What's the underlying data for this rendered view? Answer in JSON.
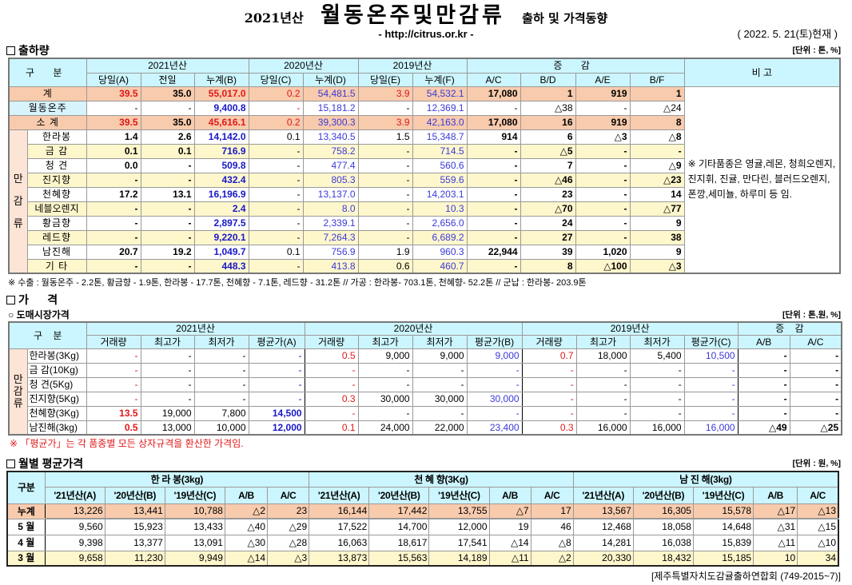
{
  "header": {
    "year": "2021년산",
    "main": "월동온주및만감류",
    "sub": "출하 및 가격동향",
    "url": "- http://citrus.or.kr -",
    "date": "( 2022. 5. 21(토)현재 )"
  },
  "shipment": {
    "title": "출하량",
    "unit": "[단위 : 톤, %]",
    "gubun": "구  분",
    "years": [
      "2021년산",
      "2020년산",
      "2019년산"
    ],
    "diff": "증  감",
    "remark_head": "비 고",
    "cols": [
      "당일(A)",
      "전일",
      "누계(B)",
      "당일(C)",
      "누계(D)",
      "당일(E)",
      "누계(F)",
      "A/C",
      "B/D",
      "A/E",
      "B/F"
    ],
    "group_label": "만\n\n감\n\n류",
    "rows": [
      {
        "label": "계",
        "type": "total",
        "cells": [
          "39.5",
          "35.0",
          "55,017.0",
          "0.2",
          "54,481.5",
          "3.9",
          "54,532.1",
          "17,080",
          "1",
          "919",
          "1"
        ]
      },
      {
        "label": "월동온주",
        "type": "winter",
        "cells": [
          "-",
          "-",
          "9,400.8",
          "-",
          "15,181.2",
          "-",
          "12,369.1",
          "-",
          "△38",
          "-",
          "△24"
        ]
      },
      {
        "label": "소  계",
        "type": "total",
        "cells": [
          "39.5",
          "35.0",
          "45,616.1",
          "0.2",
          "39,300.3",
          "3.9",
          "42,163.0",
          "17,080",
          "16",
          "919",
          "8"
        ]
      },
      {
        "label": "한라봉",
        "type": "item",
        "cells": [
          "1.4",
          "2.6",
          "14,142.0",
          "0.1",
          "13,340.5",
          "1.5",
          "15,348.7",
          "914",
          "6",
          "△3",
          "△8"
        ]
      },
      {
        "label": "금  감",
        "type": "item",
        "cells": [
          "0.1",
          "0.1",
          "716.9",
          "-",
          "758.2",
          "-",
          "714.5",
          "-",
          "△5",
          "-",
          "-"
        ]
      },
      {
        "label": "청  견",
        "type": "item",
        "cells": [
          "0.0",
          "-",
          "509.8",
          "-",
          "477.4",
          "-",
          "560.6",
          "-",
          "7",
          "-",
          "△9"
        ]
      },
      {
        "label": "진지향",
        "type": "item",
        "cells": [
          "-",
          "-",
          "432.4",
          "-",
          "805.3",
          "-",
          "559.6",
          "-",
          "△46",
          "-",
          "△23"
        ]
      },
      {
        "label": "천혜향",
        "type": "item",
        "cells": [
          "17.2",
          "13.1",
          "16,196.9",
          "-",
          "13,137.0",
          "-",
          "14,203.1",
          "-",
          "23",
          "-",
          "14"
        ]
      },
      {
        "label": "네블오렌지",
        "type": "item",
        "cells": [
          "-",
          "-",
          "2.4",
          "-",
          "8.0",
          "-",
          "10.3",
          "-",
          "△70",
          "-",
          "△77"
        ]
      },
      {
        "label": "황금향",
        "type": "item",
        "cells": [
          "-",
          "-",
          "2,897.5",
          "-",
          "2,339.1",
          "-",
          "2,656.0",
          "-",
          "24",
          "-",
          "9"
        ]
      },
      {
        "label": "레드향",
        "type": "item",
        "cells": [
          "-",
          "-",
          "9,220.1",
          "-",
          "7,264.3",
          "-",
          "6,689.2",
          "-",
          "27",
          "-",
          "38"
        ]
      },
      {
        "label": "남진해",
        "type": "item",
        "cells": [
          "20.7",
          "19.2",
          "1,049.7",
          "0.1",
          "756.9",
          "1.9",
          "960.3",
          "22,944",
          "39",
          "1,020",
          "9"
        ]
      },
      {
        "label": "기  타",
        "type": "item",
        "cells": [
          "-",
          "-",
          "448.3",
          "-",
          "413.8",
          "0.6",
          "460.7",
          "-",
          "8",
          "△100",
          "△3"
        ]
      }
    ],
    "remark": "※ 기타품종은 영귤,레몬, 청희오렌지, 진지휘, 진귤, 만다린, 블러드오렌지, 폰깡,세미뇰, 하루미 등 임.",
    "note": "※ 수출 :  월동온주 - 2.2톤, 황금향 - 1.9톤, 한라봉 - 17.7톤,  천혜향 - 7.1톤, 레드향 - 31.2톤 // 가공 : 한라봉- 703.1톤, 천혜향- 52.2톤 // 군납 : 한라봉- 203.9톤"
  },
  "price": {
    "title": "가      격",
    "subtitle": "○ 도매시장가격",
    "unit": "[단위 : 톤,원, %]",
    "gubun": "구    분",
    "years": [
      "2021년산",
      "2020년산",
      "2019년산"
    ],
    "diff": "증    감",
    "cols": [
      "거래량",
      "최고가",
      "최저가",
      "평균가(A)",
      "거래량",
      "최고가",
      "최저가",
      "평균가(B)",
      "거래량",
      "최고가",
      "최저가",
      "평균가(C)",
      "A/B",
      "A/C"
    ],
    "group_label": "만\n감\n류",
    "rows": [
      {
        "label": "한라봉(3Kg)",
        "cells": [
          "-",
          "-",
          "-",
          "-",
          "0.5",
          "9,000",
          "9,000",
          "9,000",
          "0.7",
          "18,000",
          "5,400",
          "10,500",
          "-",
          "-"
        ]
      },
      {
        "label": "금 감(10Kg)",
        "cells": [
          "-",
          "-",
          "-",
          "-",
          "-",
          "-",
          "-",
          "-",
          "-",
          "-",
          "-",
          "-",
          "-",
          "-"
        ]
      },
      {
        "label": "청   견(5Kg)",
        "cells": [
          "-",
          "-",
          "-",
          "-",
          "-",
          "-",
          "-",
          "-",
          "-",
          "-",
          "-",
          "-",
          "-",
          "-"
        ]
      },
      {
        "label": "진지향(5Kg)",
        "cells": [
          "-",
          "-",
          "-",
          "-",
          "0.3",
          "30,000",
          "30,000",
          "30,000",
          "-",
          "-",
          "-",
          "-",
          "-",
          "-"
        ]
      },
      {
        "label": "천혜향(3Kg)",
        "cells": [
          "13.5",
          "19,000",
          "7,800",
          "14,500",
          "-",
          "-",
          "-",
          "-",
          "-",
          "-",
          "-",
          "-",
          "-",
          "-"
        ]
      },
      {
        "label": "남진해(3kg)",
        "cells": [
          "0.5",
          "13,000",
          "10,000",
          "12,000",
          "0.1",
          "24,000",
          "22,000",
          "23,400",
          "0.3",
          "16,000",
          "16,000",
          "16,000",
          "△49",
          "△25"
        ]
      }
    ],
    "note": "※  「평균가」는 각 품종별 모든 상자규격을 환산한 가격임."
  },
  "monthly": {
    "title": "월별 평균가격",
    "unit": "[단위 : 원, %]",
    "gubun": "구분",
    "groups": [
      "한  라  봉(3kg)",
      "천 혜 향(3Kg)",
      "남 진 해(3kg)"
    ],
    "cols": [
      "'21년산(A)",
      "'20년산(B)",
      "'19년산(C)",
      "A/B",
      "A/C"
    ],
    "rows": [
      {
        "label": "누계",
        "type": "total",
        "cells": [
          "13,226",
          "13,441",
          "10,788",
          "△2",
          "23",
          "16,144",
          "17,442",
          "13,755",
          "△7",
          "17",
          "13,567",
          "16,305",
          "15,578",
          "△17",
          "△13"
        ]
      },
      {
        "label": "5 월",
        "type": "plain",
        "cells": [
          "9,560",
          "15,923",
          "13,433",
          "△40",
          "△29",
          "17,522",
          "14,700",
          "12,000",
          "19",
          "46",
          "12,468",
          "18,058",
          "14,648",
          "△31",
          "△15"
        ]
      },
      {
        "label": "4 월",
        "type": "plain",
        "cells": [
          "9,398",
          "13,377",
          "13,091",
          "△30",
          "△28",
          "16,063",
          "18,617",
          "17,541",
          "△14",
          "△8",
          "14,281",
          "16,038",
          "15,839",
          "△11",
          "△10"
        ]
      },
      {
        "label": "3 월",
        "type": "yellow",
        "cells": [
          "9,658",
          "11,230",
          "9,949",
          "△14",
          "△3",
          "13,873",
          "15,563",
          "14,189",
          "△11",
          "△2",
          "20,330",
          "18,432",
          "15,185",
          "10",
          "34"
        ]
      }
    ],
    "footer": "[제주특별자치도감귤출하연합회 (749-2015~7)]"
  },
  "colors": {
    "header": "#ccf6ff",
    "total": "#f8cbad",
    "yellow": "#fff7cc",
    "group": "#fce4d6",
    "red": "#e01818",
    "blue": "#1818c8"
  }
}
